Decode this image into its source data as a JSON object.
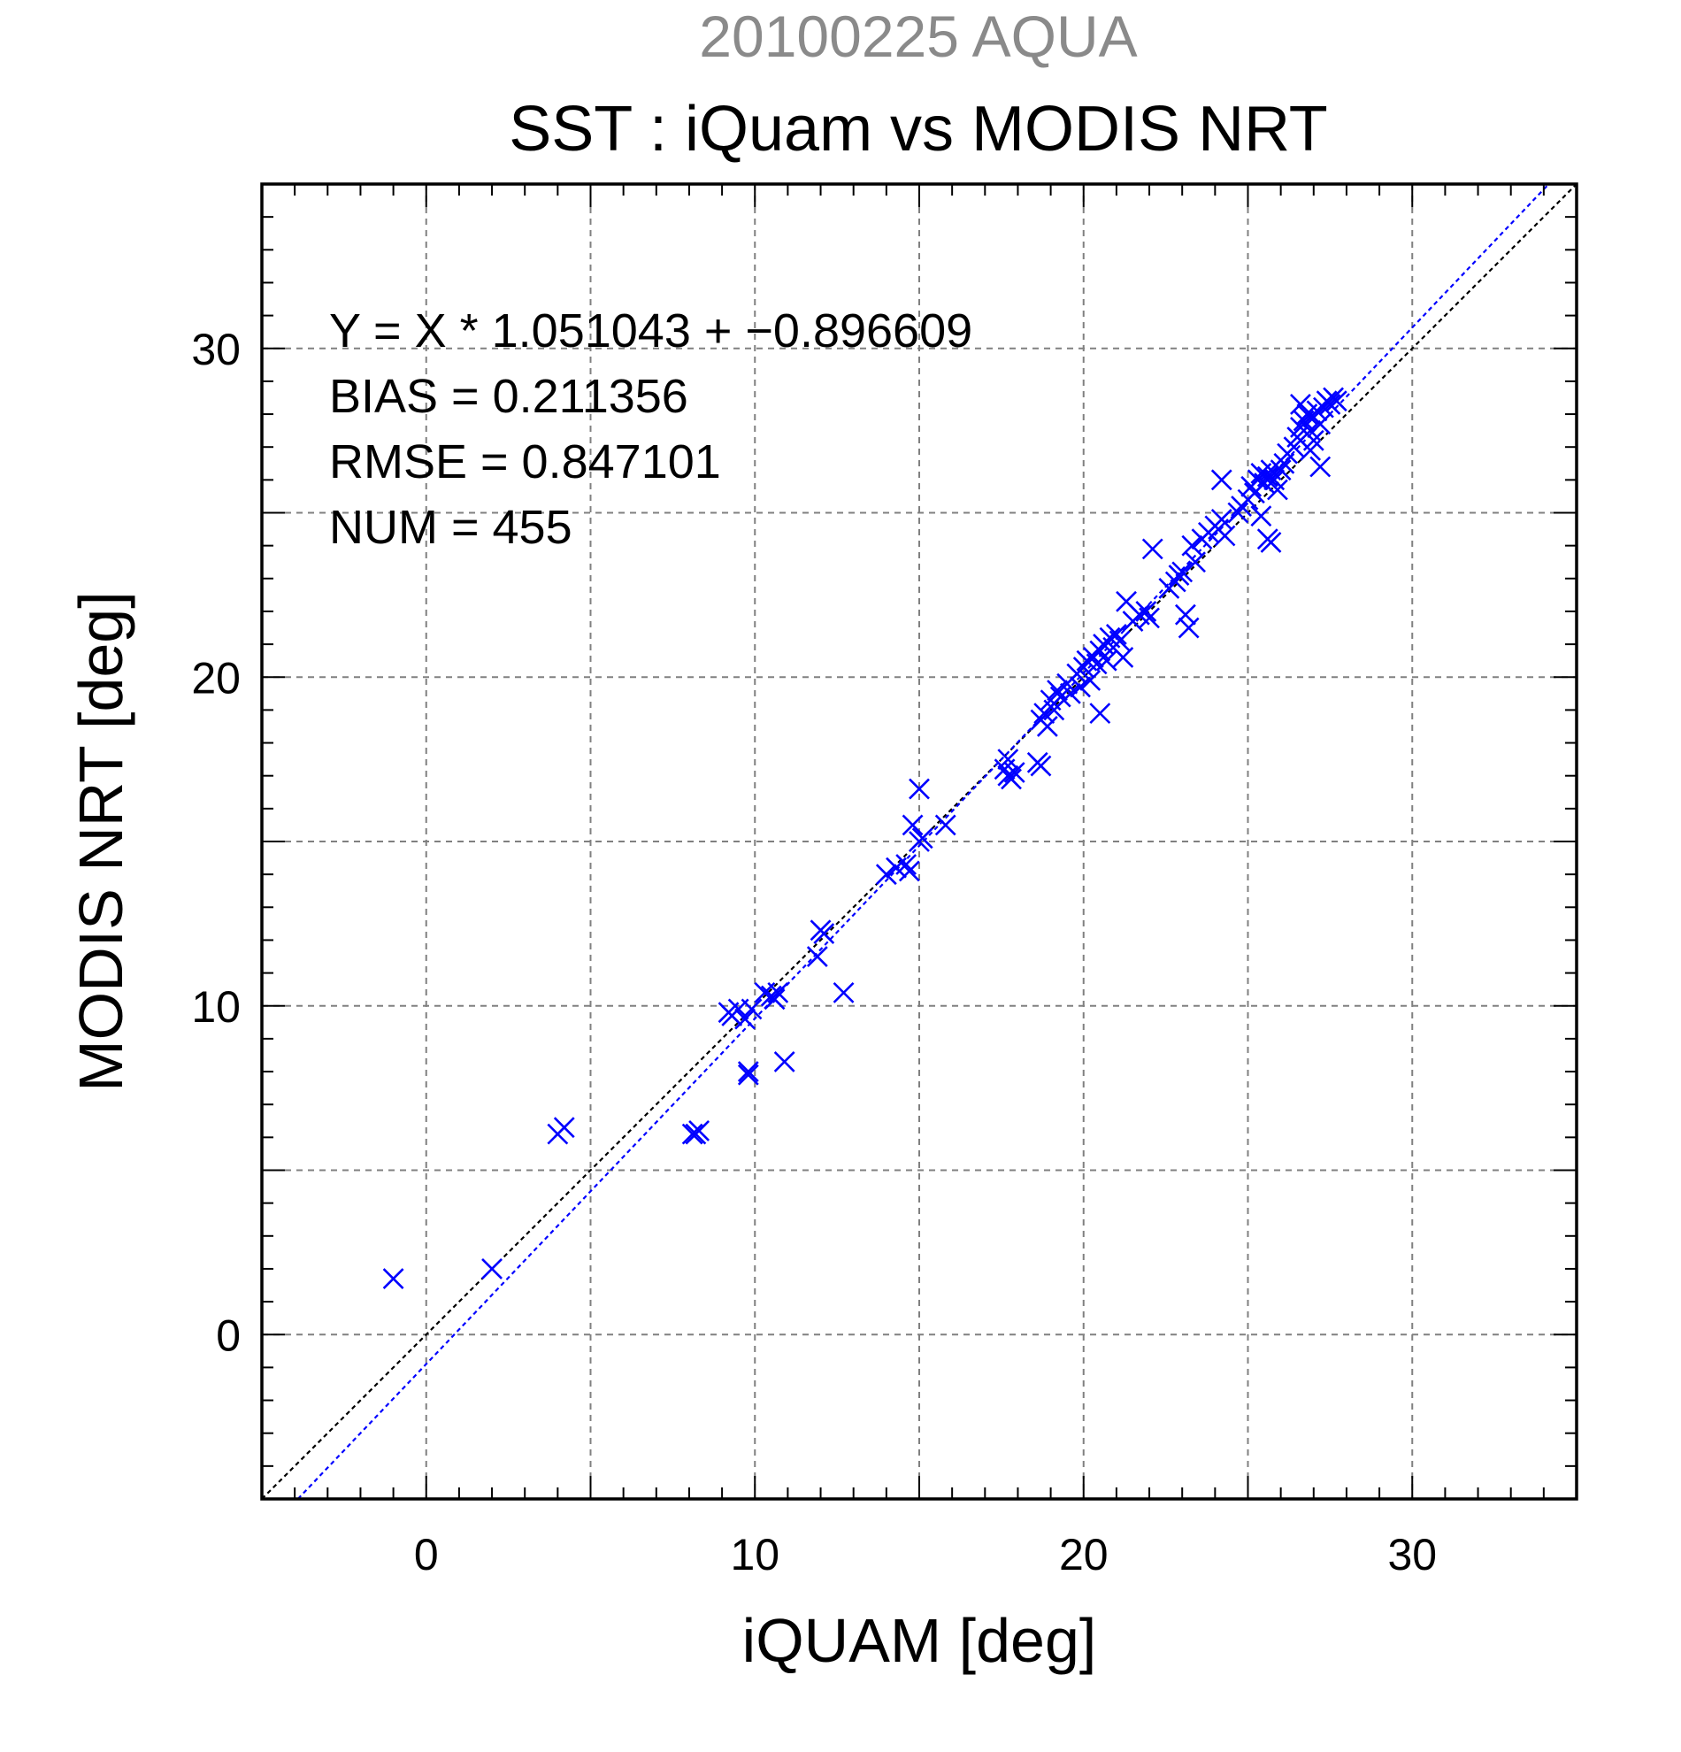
{
  "chart_data": {
    "type": "scatter",
    "subtitle": "20100225 AQUA",
    "title": "SST : iQuam vs MODIS NRT",
    "xlabel": "iQUAM [deg]",
    "ylabel": "MODIS NRT [deg]",
    "xlim": [
      -5,
      35
    ],
    "ylim": [
      -5,
      35
    ],
    "x_ticks": [
      0,
      10,
      20,
      30
    ],
    "y_ticks": [
      0,
      10,
      20,
      30
    ],
    "x_tick_labels": [
      "0",
      "10",
      "20",
      "30"
    ],
    "y_tick_labels": [
      "0",
      "10",
      "20",
      "30"
    ],
    "grid": true,
    "annotations": [
      "Y = X * 1.051043 + −0.896609",
      "BIAS = 0.211356",
      "RMSE = 0.847101",
      "NUM = 455"
    ],
    "regression": {
      "slope": 1.051043,
      "intercept": -0.896609,
      "color": "#0000ff"
    },
    "identity_line_color": "#000000",
    "marker": "x",
    "marker_color": "#0000ff",
    "series": [
      {
        "values": [
          [
            -1.0,
            1.7
          ],
          [
            2.0,
            2.0
          ],
          [
            4.0,
            6.1
          ],
          [
            4.2,
            6.3
          ],
          [
            8.1,
            6.1
          ],
          [
            8.2,
            6.1
          ],
          [
            8.3,
            6.2
          ],
          [
            9.2,
            9.8
          ],
          [
            9.3,
            9.7
          ],
          [
            9.5,
            9.9
          ],
          [
            9.7,
            9.6
          ],
          [
            9.9,
            9.9
          ],
          [
            9.8,
            8.0
          ],
          [
            9.8,
            7.9
          ],
          [
            10.3,
            10.4
          ],
          [
            10.5,
            10.3
          ],
          [
            10.6,
            10.2
          ],
          [
            10.7,
            10.4
          ],
          [
            10.9,
            8.3
          ],
          [
            11.9,
            11.5
          ],
          [
            12.0,
            12.3
          ],
          [
            12.1,
            12.2
          ],
          [
            12.7,
            10.4
          ],
          [
            14.0,
            14.0
          ],
          [
            14.3,
            14.2
          ],
          [
            14.6,
            14.3
          ],
          [
            14.7,
            14.1
          ],
          [
            14.8,
            15.5
          ],
          [
            15.0,
            15.0
          ],
          [
            15.1,
            15.1
          ],
          [
            15.0,
            16.6
          ],
          [
            15.8,
            15.5
          ],
          [
            17.6,
            17.2
          ],
          [
            17.7,
            17.5
          ],
          [
            17.8,
            16.9
          ],
          [
            17.9,
            17.1
          ],
          [
            17.7,
            17.0
          ],
          [
            18.6,
            17.4
          ],
          [
            18.7,
            17.3
          ],
          [
            18.7,
            18.7
          ],
          [
            18.8,
            18.9
          ],
          [
            18.9,
            18.5
          ],
          [
            19.0,
            19.3
          ],
          [
            19.1,
            19.0
          ],
          [
            19.2,
            19.6
          ],
          [
            19.3,
            19.4
          ],
          [
            19.5,
            19.8
          ],
          [
            19.6,
            19.5
          ],
          [
            19.8,
            20.1
          ],
          [
            19.9,
            19.7
          ],
          [
            20.0,
            20.3
          ],
          [
            20.1,
            20.5
          ],
          [
            20.2,
            19.9
          ],
          [
            20.3,
            20.6
          ],
          [
            20.4,
            20.4
          ],
          [
            20.5,
            20.8
          ],
          [
            20.5,
            18.9
          ],
          [
            20.6,
            21.0
          ],
          [
            20.7,
            20.5
          ],
          [
            20.8,
            21.2
          ],
          [
            20.9,
            20.9
          ],
          [
            21.0,
            21.3
          ],
          [
            21.1,
            21.1
          ],
          [
            21.2,
            20.6
          ],
          [
            21.3,
            22.3
          ],
          [
            21.5,
            21.7
          ],
          [
            21.7,
            21.9
          ],
          [
            21.9,
            22.0
          ],
          [
            22.0,
            21.8
          ],
          [
            22.1,
            23.9
          ],
          [
            22.6,
            22.7
          ],
          [
            22.8,
            22.9
          ],
          [
            22.9,
            23.1
          ],
          [
            23.0,
            23.2
          ],
          [
            23.1,
            21.9
          ],
          [
            23.2,
            21.5
          ],
          [
            23.3,
            24.0
          ],
          [
            23.4,
            23.5
          ],
          [
            23.6,
            24.2
          ],
          [
            23.8,
            24.4
          ],
          [
            24.0,
            24.6
          ],
          [
            24.1,
            24.5
          ],
          [
            24.2,
            24.8
          ],
          [
            24.3,
            24.3
          ],
          [
            24.2,
            26.0
          ],
          [
            24.7,
            25.0
          ],
          [
            24.8,
            25.2
          ],
          [
            25.0,
            25.4
          ],
          [
            25.1,
            25.8
          ],
          [
            25.2,
            25.6
          ],
          [
            25.3,
            26.0
          ],
          [
            25.4,
            26.2
          ],
          [
            25.5,
            25.9
          ],
          [
            25.6,
            26.1
          ],
          [
            25.7,
            26.3
          ],
          [
            25.8,
            26.0
          ],
          [
            25.9,
            25.7
          ],
          [
            25.6,
            24.2
          ],
          [
            25.7,
            24.1
          ],
          [
            25.4,
            24.9
          ],
          [
            26.0,
            26.3
          ],
          [
            26.1,
            26.5
          ],
          [
            26.2,
            26.8
          ],
          [
            26.4,
            27.0
          ],
          [
            26.5,
            27.3
          ],
          [
            26.6,
            27.6
          ],
          [
            26.7,
            27.8
          ],
          [
            26.8,
            28.0
          ],
          [
            26.9,
            27.5
          ],
          [
            27.0,
            27.9
          ],
          [
            27.1,
            28.1
          ],
          [
            27.2,
            27.7
          ],
          [
            27.3,
            28.2
          ],
          [
            27.4,
            28.4
          ],
          [
            27.5,
            28.3
          ],
          [
            27.6,
            28.5
          ],
          [
            27.7,
            28.4
          ],
          [
            27.2,
            26.4
          ],
          [
            27.0,
            27.2
          ],
          [
            26.9,
            26.9
          ],
          [
            26.6,
            28.3
          ]
        ]
      }
    ]
  }
}
